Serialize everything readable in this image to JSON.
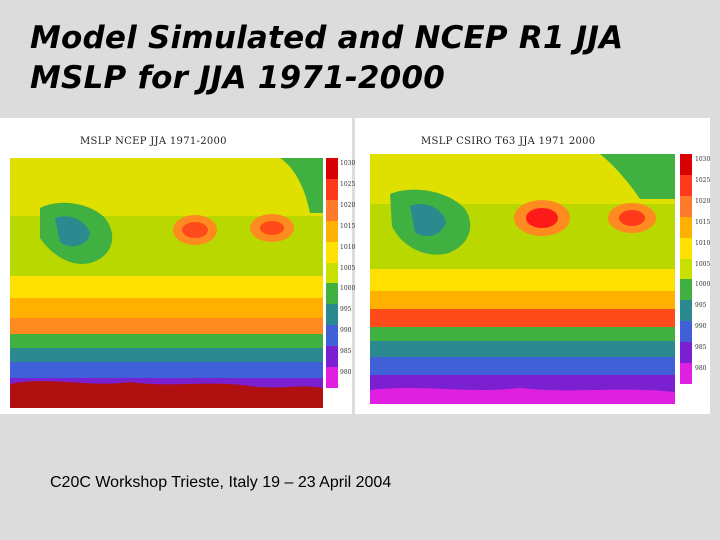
{
  "slide": {
    "title_line1": "Model Simulated and NCEP R1 JJA",
    "title_line2": "MSLP for JJA 1971-2000",
    "footer": "C20C Workshop Trieste, Italy 19 – 23 April 2004"
  },
  "maps": [
    {
      "title": "MSLP NCEP JJA 1971-2000"
    },
    {
      "title": "MSLP CSIRO T63 JJA 1971 2000"
    }
  ],
  "colorbar": {
    "levels": [
      "1030",
      "1025",
      "1020",
      "1015",
      "1010",
      "1005",
      "1000",
      "995",
      "990",
      "985",
      "980"
    ],
    "colors": [
      "#d80000",
      "#ff3a1a",
      "#ff7a2a",
      "#ffb000",
      "#ffe000",
      "#c8e000",
      "#40b040",
      "#2a8a90",
      "#4060d8",
      "#7a20d0",
      "#e020e0"
    ]
  }
}
